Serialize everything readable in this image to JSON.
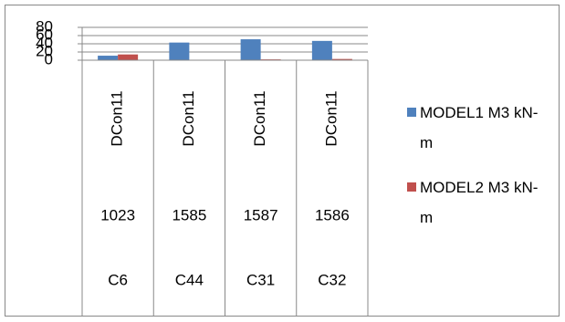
{
  "chart_data": {
    "type": "bar",
    "categories": [
      [
        "DCon11",
        "1023",
        "C6"
      ],
      [
        "DCon11",
        "1585",
        "C44"
      ],
      [
        "DCon11",
        "1587",
        "C31"
      ],
      [
        "DCon11",
        "1586",
        "C32"
      ]
    ],
    "series": [
      {
        "name": "MODEL1 M3 kN-m",
        "color": "#4f81bd",
        "values": [
          11,
          43,
          51,
          47
        ]
      },
      {
        "name": "MODEL2 M3 kN-m",
        "color": "#c0504d",
        "values": [
          14,
          0,
          2,
          3
        ]
      }
    ],
    "ylim": [
      0,
      80
    ],
    "yticks": [
      0,
      20,
      40,
      60,
      80
    ],
    "grid": true,
    "legend": "right"
  }
}
